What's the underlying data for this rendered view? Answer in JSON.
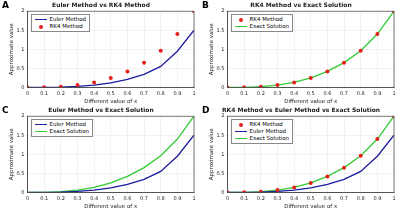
{
  "chart_data": [
    {
      "type": "line",
      "annotation": "A",
      "title": "Euler Method vs RK4 Method",
      "xlabel": "Different value of x",
      "ylabel": "Approximate value",
      "x": [
        0,
        0.1,
        0.2,
        0.3,
        0.4,
        0.5,
        0.6,
        0.7,
        0.8,
        0.9,
        1
      ],
      "series": [
        {
          "name": "Euler Method",
          "type": "line",
          "line_style": "solid",
          "color": "#1c1c9e",
          "values": [
            0,
            0.001,
            0.008,
            0.025,
            0.06,
            0.12,
            0.21,
            0.34,
            0.55,
            0.95,
            1.5
          ]
        },
        {
          "name": "RK4 Method",
          "type": "scatter",
          "marker": "o",
          "color": "#e3201b",
          "values": [
            0,
            0.003,
            0.02,
            0.06,
            0.13,
            0.25,
            0.42,
            0.65,
            0.96,
            1.4,
            2
          ]
        }
      ],
      "xlim": [
        0,
        1
      ],
      "xticks": [
        0,
        0.1,
        0.2,
        0.3,
        0.4,
        0.5,
        0.6,
        0.7,
        0.8,
        0.9,
        1
      ],
      "ylim": [
        0,
        2
      ],
      "yticks": [
        0,
        0.5,
        1,
        1.5,
        2
      ],
      "grid": true,
      "legend": "upper left"
    },
    {
      "type": "line",
      "annotation": "C",
      "title": "Euler Method vs Exact Solution",
      "xlabel": "Different value of x",
      "ylabel": "Approximate value",
      "x": [
        0,
        0.1,
        0.2,
        0.3,
        0.4,
        0.5,
        0.6,
        0.7,
        0.8,
        0.9,
        1
      ],
      "series": [
        {
          "name": "Euler Method",
          "type": "line",
          "line_style": "solid",
          "color": "#1c1c9e",
          "values": [
            0,
            0.001,
            0.008,
            0.025,
            0.06,
            0.12,
            0.21,
            0.34,
            0.55,
            0.95,
            1.5
          ]
        },
        {
          "name": "Exact Solution",
          "type": "line",
          "line_style": "solid",
          "color": "#33cc33",
          "values": [
            0,
            0.003,
            0.02,
            0.06,
            0.13,
            0.25,
            0.42,
            0.65,
            0.96,
            1.4,
            2
          ]
        }
      ],
      "xlim": [
        0,
        1
      ],
      "xticks": [
        0,
        0.1,
        0.2,
        0.3,
        0.4,
        0.5,
        0.6,
        0.7,
        0.8,
        0.9,
        1
      ],
      "ylim": [
        0,
        2
      ],
      "yticks": [
        0,
        0.5,
        1,
        1.5,
        2
      ],
      "grid": true,
      "legend": "upper left"
    },
    {
      "type": "line",
      "annotation": "B",
      "title": "RK4 Method vs Exact Solution",
      "xlabel": "Different value of x",
      "ylabel": "Approximate value",
      "x": [
        0,
        0.1,
        0.2,
        0.3,
        0.4,
        0.5,
        0.6,
        0.7,
        0.8,
        0.9,
        1
      ],
      "series": [
        {
          "name": "RK4 Method",
          "type": "scatter",
          "marker": "o",
          "color": "#e3201b",
          "values": [
            0,
            0.003,
            0.02,
            0.06,
            0.13,
            0.25,
            0.42,
            0.65,
            0.96,
            1.4,
            2
          ]
        },
        {
          "name": "Exact Solution",
          "type": "line",
          "line_style": "solid",
          "color": "#33cc33",
          "values": [
            0,
            0.003,
            0.02,
            0.06,
            0.13,
            0.25,
            0.42,
            0.65,
            0.96,
            1.4,
            2
          ]
        }
      ],
      "xlim": [
        0,
        1
      ],
      "xticks": [
        0,
        0.1,
        0.2,
        0.3,
        0.4,
        0.5,
        0.6,
        0.7,
        0.8,
        0.9,
        1
      ],
      "ylim": [
        0,
        2
      ],
      "yticks": [
        0,
        0.5,
        1,
        1.5,
        2
      ],
      "grid": true,
      "legend": "upper left"
    },
    {
      "type": "line",
      "annotation": "D",
      "title": "RK4 Method vs Euler Method vs Exact Solution",
      "xlabel": "Different value of x",
      "ylabel": "Approximate value",
      "x": [
        0,
        0.1,
        0.2,
        0.3,
        0.4,
        0.5,
        0.6,
        0.7,
        0.8,
        0.9,
        1
      ],
      "series": [
        {
          "name": "RK4 Method",
          "type": "scatter",
          "marker": "o",
          "color": "#e3201b",
          "values": [
            0,
            0.003,
            0.02,
            0.06,
            0.13,
            0.25,
            0.42,
            0.65,
            0.96,
            1.4,
            2
          ]
        },
        {
          "name": "Euler Method",
          "type": "line",
          "line_style": "solid",
          "color": "#1c1c9e",
          "values": [
            0,
            0.001,
            0.008,
            0.025,
            0.06,
            0.12,
            0.21,
            0.34,
            0.55,
            0.95,
            1.5
          ]
        },
        {
          "name": "Exact Solution",
          "type": "line",
          "line_style": "solid",
          "color": "#33cc33",
          "values": [
            0,
            0.003,
            0.02,
            0.06,
            0.13,
            0.25,
            0.42,
            0.65,
            0.96,
            1.4,
            2
          ]
        }
      ],
      "xlim": [
        0,
        1
      ],
      "xticks": [
        0,
        0.1,
        0.2,
        0.3,
        0.4,
        0.5,
        0.6,
        0.7,
        0.8,
        0.9,
        1
      ],
      "ylim": [
        0,
        2
      ],
      "yticks": [
        0,
        0.5,
        1,
        1.5,
        2
      ],
      "grid": true,
      "legend": "upper left"
    }
  ]
}
